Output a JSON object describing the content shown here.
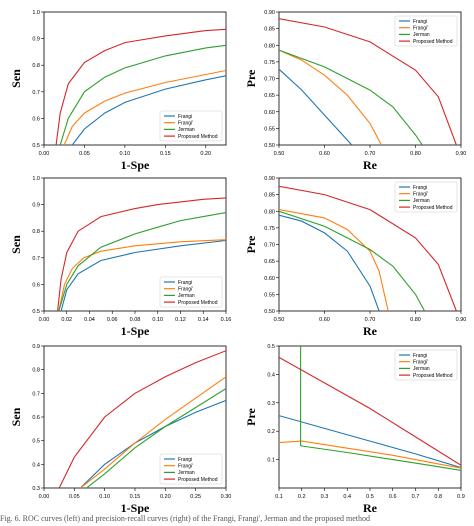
{
  "caption": "Fig. 6. ROC curves (left) and precision-recall curves (right) of the Frangi, Frangi', Jerman and the proposed method",
  "colors": {
    "Frangi": "#1f77b4",
    "Frangi'": "#ff7f0e",
    "Jerman": "#2ca02c",
    "Proposed Method": "#d62728"
  },
  "chart_data": [
    {
      "type": "line",
      "xlabel": "1-Spe",
      "ylabel": "Sen",
      "xlim": [
        0,
        0.225
      ],
      "ylim": [
        0.5,
        1.0
      ],
      "xticks": [
        0.0,
        0.05,
        0.1,
        0.15,
        0.2
      ],
      "xtick_labels": [
        "0.00",
        "0.05",
        "0.10",
        "0.15",
        "0.20"
      ],
      "yticks": [
        0.5,
        0.6,
        0.7,
        0.8,
        0.9,
        1.0
      ],
      "ytick_labels": [
        "0.5",
        "0.6",
        "0.7",
        "0.8",
        "0.9",
        "1.0"
      ],
      "legend": "bottom-right",
      "series": [
        {
          "name": "Frangi",
          "x": [
            0.035,
            0.05,
            0.075,
            0.1,
            0.15,
            0.2,
            0.225
          ],
          "y": [
            0.5,
            0.56,
            0.62,
            0.66,
            0.71,
            0.745,
            0.76
          ]
        },
        {
          "name": "Frangi'",
          "x": [
            0.025,
            0.035,
            0.05,
            0.075,
            0.1,
            0.15,
            0.2,
            0.225
          ],
          "y": [
            0.5,
            0.57,
            0.62,
            0.665,
            0.695,
            0.735,
            0.765,
            0.78
          ]
        },
        {
          "name": "Jerman",
          "x": [
            0.02,
            0.03,
            0.05,
            0.075,
            0.1,
            0.15,
            0.2,
            0.225
          ],
          "y": [
            0.5,
            0.6,
            0.7,
            0.755,
            0.79,
            0.835,
            0.865,
            0.875
          ]
        },
        {
          "name": "Proposed Method",
          "x": [
            0.015,
            0.02,
            0.03,
            0.05,
            0.075,
            0.1,
            0.15,
            0.2,
            0.225
          ],
          "y": [
            0.5,
            0.62,
            0.73,
            0.81,
            0.855,
            0.885,
            0.91,
            0.93,
            0.935
          ]
        }
      ]
    },
    {
      "type": "line",
      "xlabel": "Re",
      "ylabel": "Pre",
      "xlim": [
        0.5,
        0.9
      ],
      "ylim": [
        0.5,
        0.9
      ],
      "xticks": [
        0.5,
        0.6,
        0.7,
        0.8,
        0.9
      ],
      "xtick_labels": [
        "0.50",
        "0.60",
        "0.70",
        "0.80",
        "0.90"
      ],
      "yticks": [
        0.5,
        0.55,
        0.6,
        0.65,
        0.7,
        0.75,
        0.8,
        0.85,
        0.9
      ],
      "ytick_labels": [
        "0.50",
        "0.55",
        "0.60",
        "0.65",
        "0.70",
        "0.75",
        "0.80",
        "0.85",
        "0.90"
      ],
      "legend": "top-right",
      "series": [
        {
          "name": "Frangi",
          "x": [
            0.5,
            0.55,
            0.6,
            0.63,
            0.66
          ],
          "y": [
            0.728,
            0.665,
            0.59,
            0.545,
            0.5
          ]
        },
        {
          "name": "Frangi'",
          "x": [
            0.5,
            0.55,
            0.6,
            0.65,
            0.7,
            0.725
          ],
          "y": [
            0.785,
            0.755,
            0.71,
            0.65,
            0.565,
            0.5
          ]
        },
        {
          "name": "Jerman",
          "x": [
            0.5,
            0.6,
            0.7,
            0.75,
            0.8,
            0.815
          ],
          "y": [
            0.785,
            0.735,
            0.665,
            0.615,
            0.53,
            0.5
          ]
        },
        {
          "name": "Proposed Method",
          "x": [
            0.5,
            0.6,
            0.7,
            0.8,
            0.85,
            0.89
          ],
          "y": [
            0.88,
            0.855,
            0.81,
            0.725,
            0.645,
            0.5
          ]
        }
      ]
    },
    {
      "type": "line",
      "xlabel": "1-Spe",
      "ylabel": "Sen",
      "xlim": [
        0,
        0.16
      ],
      "ylim": [
        0.5,
        1.0
      ],
      "xticks": [
        0.0,
        0.02,
        0.04,
        0.06,
        0.08,
        0.1,
        0.12,
        0.14,
        0.16
      ],
      "xtick_labels": [
        "0.00",
        "0.02",
        "0.04",
        "0.06",
        "0.08",
        "0.10",
        "0.12",
        "0.14",
        "0.16"
      ],
      "yticks": [
        0.5,
        0.6,
        0.7,
        0.8,
        0.9,
        1.0
      ],
      "ytick_labels": [
        "0.5",
        "0.6",
        "0.7",
        "0.8",
        "0.9",
        "1.0"
      ],
      "legend": "bottom-right",
      "series": [
        {
          "name": "Frangi",
          "x": [
            0.015,
            0.02,
            0.03,
            0.05,
            0.08,
            0.12,
            0.16
          ],
          "y": [
            0.5,
            0.58,
            0.64,
            0.69,
            0.72,
            0.745,
            0.765
          ]
        },
        {
          "name": "Frangi'",
          "x": [
            0.013,
            0.018,
            0.025,
            0.035,
            0.05,
            0.08,
            0.12,
            0.16
          ],
          "y": [
            0.5,
            0.6,
            0.66,
            0.7,
            0.725,
            0.745,
            0.76,
            0.768
          ]
        },
        {
          "name": "Jerman",
          "x": [
            0.013,
            0.02,
            0.03,
            0.05,
            0.08,
            0.1,
            0.12,
            0.14,
            0.16
          ],
          "y": [
            0.5,
            0.6,
            0.67,
            0.74,
            0.79,
            0.815,
            0.84,
            0.855,
            0.87
          ]
        },
        {
          "name": "Proposed Method",
          "x": [
            0.012,
            0.015,
            0.02,
            0.03,
            0.05,
            0.08,
            0.1,
            0.12,
            0.14,
            0.16
          ],
          "y": [
            0.5,
            0.62,
            0.72,
            0.8,
            0.855,
            0.885,
            0.9,
            0.91,
            0.92,
            0.925
          ]
        }
      ]
    },
    {
      "type": "line",
      "xlabel": "Re",
      "ylabel": "Pre",
      "xlim": [
        0.5,
        0.9
      ],
      "ylim": [
        0.5,
        0.9
      ],
      "xticks": [
        0.5,
        0.6,
        0.7,
        0.8,
        0.9
      ],
      "xtick_labels": [
        "0.50",
        "0.60",
        "0.70",
        "0.80",
        "0.90"
      ],
      "yticks": [
        0.5,
        0.55,
        0.6,
        0.65,
        0.7,
        0.75,
        0.8,
        0.85,
        0.9
      ],
      "ytick_labels": [
        "0.50",
        "0.55",
        "0.60",
        "0.65",
        "0.70",
        "0.75",
        "0.80",
        "0.85",
        "0.90"
      ],
      "legend": "top-right",
      "series": [
        {
          "name": "Frangi",
          "x": [
            0.5,
            0.55,
            0.6,
            0.65,
            0.7,
            0.72
          ],
          "y": [
            0.788,
            0.77,
            0.735,
            0.68,
            0.575,
            0.5
          ]
        },
        {
          "name": "Frangi'",
          "x": [
            0.5,
            0.6,
            0.65,
            0.7,
            0.72,
            0.74
          ],
          "y": [
            0.805,
            0.78,
            0.745,
            0.68,
            0.62,
            0.5
          ]
        },
        {
          "name": "Jerman",
          "x": [
            0.5,
            0.6,
            0.7,
            0.75,
            0.8,
            0.82
          ],
          "y": [
            0.8,
            0.755,
            0.685,
            0.635,
            0.55,
            0.5
          ]
        },
        {
          "name": "Proposed Method",
          "x": [
            0.5,
            0.6,
            0.7,
            0.8,
            0.85,
            0.89
          ],
          "y": [
            0.875,
            0.85,
            0.805,
            0.72,
            0.64,
            0.5
          ]
        }
      ]
    },
    {
      "type": "line",
      "xlabel": "1-Spe",
      "ylabel": "Sen",
      "xlim": [
        0,
        0.3
      ],
      "ylim": [
        0.3,
        0.9
      ],
      "xticks": [
        0.0,
        0.05,
        0.1,
        0.15,
        0.2,
        0.25,
        0.3
      ],
      "xtick_labels": [
        "0.00",
        "0.05",
        "0.10",
        "0.15",
        "0.20",
        "0.25",
        "0.30"
      ],
      "yticks": [
        0.3,
        0.4,
        0.5,
        0.6,
        0.7,
        0.8,
        0.9
      ],
      "ytick_labels": [
        "0.3",
        "0.4",
        "0.5",
        "0.6",
        "0.7",
        "0.8",
        "0.9"
      ],
      "legend": "bottom-right",
      "series": [
        {
          "name": "Frangi",
          "x": [
            0.06,
            0.1,
            0.15,
            0.2,
            0.25,
            0.3
          ],
          "y": [
            0.3,
            0.4,
            0.49,
            0.56,
            0.62,
            0.67
          ]
        },
        {
          "name": "Frangi'",
          "x": [
            0.06,
            0.1,
            0.15,
            0.2,
            0.25,
            0.3
          ],
          "y": [
            0.3,
            0.38,
            0.49,
            0.59,
            0.68,
            0.77
          ]
        },
        {
          "name": "Jerman",
          "x": [
            0.07,
            0.1,
            0.15,
            0.2,
            0.25,
            0.3
          ],
          "y": [
            0.3,
            0.36,
            0.47,
            0.56,
            0.64,
            0.72
          ]
        },
        {
          "name": "Proposed Method",
          "x": [
            0.025,
            0.05,
            0.1,
            0.15,
            0.2,
            0.25,
            0.3
          ],
          "y": [
            0.3,
            0.43,
            0.6,
            0.7,
            0.77,
            0.83,
            0.88
          ]
        }
      ]
    },
    {
      "type": "line",
      "xlabel": "Re",
      "ylabel": "Pre",
      "xlim": [
        0.1,
        0.9
      ],
      "ylim": [
        0.0,
        0.5
      ],
      "xticks": [
        0.1,
        0.2,
        0.3,
        0.4,
        0.5,
        0.6,
        0.7,
        0.8,
        0.9
      ],
      "xtick_labels": [
        "0.1",
        "0.2",
        "0.3",
        "0.4",
        "0.5",
        "0.6",
        "0.7",
        "0.8",
        "0.9"
      ],
      "yticks": [
        0.1,
        0.2,
        0.3,
        0.4,
        0.5
      ],
      "ytick_labels": [
        "0.1",
        "0.2",
        "0.3",
        "0.4",
        "0.5"
      ],
      "legend": "top-right",
      "series": [
        {
          "name": "Frangi",
          "x": [
            0.1,
            0.3,
            0.5,
            0.7,
            0.9
          ],
          "y": [
            0.255,
            0.21,
            0.165,
            0.12,
            0.072
          ]
        },
        {
          "name": "Frangi'",
          "x": [
            0.1,
            0.2,
            0.4,
            0.6,
            0.8,
            0.9
          ],
          "y": [
            0.16,
            0.165,
            0.14,
            0.115,
            0.085,
            0.07
          ]
        },
        {
          "name": "Jerman",
          "x": [
            0.195,
            0.195,
            0.2,
            0.4,
            0.6,
            0.8,
            0.9
          ],
          "y": [
            0.5,
            0.15,
            0.148,
            0.125,
            0.1,
            0.075,
            0.062
          ]
        },
        {
          "name": "Proposed Method",
          "x": [
            0.1,
            0.3,
            0.5,
            0.7,
            0.9
          ],
          "y": [
            0.46,
            0.37,
            0.28,
            0.18,
            0.08
          ]
        }
      ]
    }
  ]
}
